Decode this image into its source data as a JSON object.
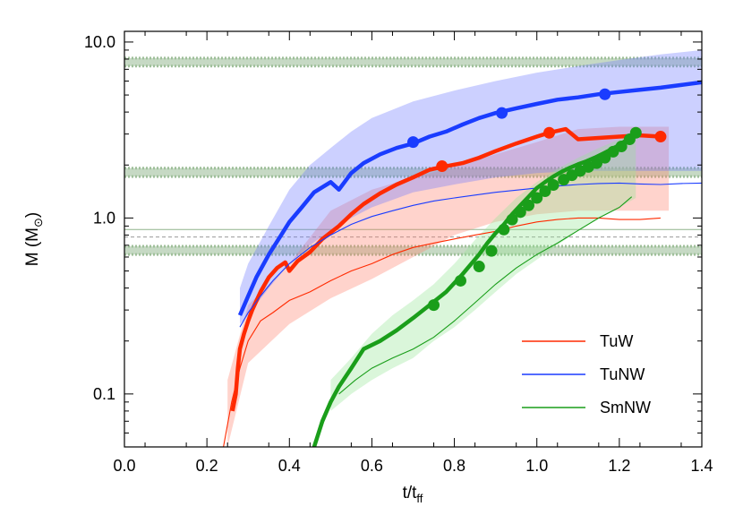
{
  "chart_data": {
    "type": "line",
    "xlabel": "t/t",
    "xlabel_sub": "ff",
    "ylabel": "M (M",
    "ylabel_sub": "⊙",
    "ylabel_close": ")",
    "xlim": [
      0.0,
      1.4
    ],
    "ylim": [
      0.05,
      11.5
    ],
    "yscale": "log",
    "x_ticks": [
      0.0,
      0.2,
      0.4,
      0.6,
      0.8,
      1.0,
      1.2,
      1.4
    ],
    "x_tick_labels": [
      "0.0",
      "0.2",
      "0.4",
      "0.6",
      "0.8",
      "1.0",
      "1.2",
      "1.4"
    ],
    "y_ticks": [
      0.1,
      1.0,
      10.0
    ],
    "y_tick_labels": [
      "0.1",
      "1.0",
      "10.0"
    ],
    "legend_position": "bottom-right",
    "reference_bands": [
      {
        "y_low": 7.3,
        "y_high": 8.1,
        "color": "#b3ccb0"
      },
      {
        "y_low": 1.72,
        "y_high": 1.92,
        "color": "#b3ccb0"
      },
      {
        "y_low": 0.62,
        "y_high": 0.69,
        "color": "#b3ccb0"
      }
    ],
    "reference_lines": [
      {
        "y": 0.86,
        "color": "#8fb48a",
        "dash": false
      },
      {
        "y": 0.78,
        "color": "#999999",
        "dash": true
      }
    ],
    "series": [
      {
        "name": "TuW",
        "color": "#ff2a00",
        "fill": "rgba(255,128,110,0.35)",
        "thick": {
          "x": [
            0.262,
            0.27,
            0.275,
            0.28,
            0.29,
            0.3,
            0.31,
            0.33,
            0.35,
            0.37,
            0.39,
            0.4,
            0.42,
            0.45,
            0.48,
            0.52,
            0.55,
            0.58,
            0.62,
            0.66,
            0.7,
            0.74,
            0.77,
            0.82,
            0.86,
            0.9,
            0.95,
            1.0,
            1.03,
            1.07,
            1.1,
            1.15,
            1.2,
            1.25,
            1.3
          ],
          "y": [
            0.08,
            0.1,
            0.14,
            0.18,
            0.22,
            0.26,
            0.3,
            0.38,
            0.46,
            0.52,
            0.56,
            0.5,
            0.57,
            0.64,
            0.76,
            0.9,
            1.05,
            1.2,
            1.38,
            1.55,
            1.7,
            1.88,
            1.95,
            2.05,
            2.2,
            2.4,
            2.65,
            2.9,
            3.05,
            3.2,
            2.8,
            2.85,
            2.9,
            2.95,
            2.9
          ]
        },
        "markers": {
          "x": [
            0.77,
            1.03,
            1.3
          ],
          "y": [
            1.97,
            3.05,
            2.9
          ]
        },
        "thin": {
          "x": [
            0.24,
            0.26,
            0.28,
            0.3,
            0.33,
            0.36,
            0.4,
            0.45,
            0.5,
            0.55,
            0.6,
            0.65,
            0.7,
            0.75,
            0.8,
            0.85,
            0.9,
            0.95,
            1.0,
            1.05,
            1.1,
            1.15,
            1.2,
            1.25,
            1.3
          ],
          "y": [
            0.05,
            0.09,
            0.14,
            0.2,
            0.26,
            0.29,
            0.34,
            0.38,
            0.44,
            0.5,
            0.55,
            0.62,
            0.68,
            0.72,
            0.76,
            0.8,
            0.84,
            0.9,
            0.95,
            0.98,
            1.0,
            1.0,
            0.98,
            0.98,
            1.0
          ]
        },
        "band": {
          "x": [
            0.25,
            0.3,
            0.4,
            0.5,
            0.6,
            0.7,
            0.8,
            0.9,
            1.0,
            1.1,
            1.2,
            1.32
          ],
          "low": [
            0.05,
            0.15,
            0.25,
            0.35,
            0.45,
            0.6,
            0.8,
            0.95,
            1.05,
            1.1,
            1.1,
            1.1
          ],
          "high": [
            0.12,
            0.32,
            0.55,
            1.1,
            1.45,
            1.7,
            1.95,
            2.3,
            2.7,
            3.2,
            3.3,
            3.3
          ]
        }
      },
      {
        "name": "TuNW",
        "color": "#1a3cff",
        "fill": "rgba(110,120,255,0.35)",
        "thick": {
          "x": [
            0.28,
            0.3,
            0.32,
            0.35,
            0.38,
            0.4,
            0.43,
            0.46,
            0.5,
            0.52,
            0.55,
            0.58,
            0.62,
            0.66,
            0.7,
            0.74,
            0.78,
            0.82,
            0.86,
            0.9,
            0.95,
            1.0,
            1.05,
            1.1,
            1.15,
            1.2,
            1.25,
            1.3,
            1.35,
            1.4
          ],
          "y": [
            0.28,
            0.36,
            0.46,
            0.62,
            0.8,
            0.95,
            1.15,
            1.4,
            1.6,
            1.45,
            1.8,
            2.05,
            2.3,
            2.5,
            2.65,
            2.9,
            3.1,
            3.4,
            3.7,
            3.95,
            4.2,
            4.45,
            4.7,
            4.85,
            5.05,
            5.2,
            5.35,
            5.5,
            5.7,
            5.9
          ]
        },
        "markers": {
          "x": [
            0.7,
            0.915,
            1.165
          ],
          "y": [
            2.7,
            3.95,
            5.05
          ]
        },
        "thin": {
          "x": [
            0.28,
            0.3,
            0.33,
            0.36,
            0.4,
            0.45,
            0.5,
            0.55,
            0.6,
            0.65,
            0.7,
            0.75,
            0.8,
            0.85,
            0.9,
            0.95,
            1.0,
            1.05,
            1.1,
            1.15,
            1.2,
            1.25,
            1.3,
            1.35,
            1.4
          ],
          "y": [
            0.24,
            0.29,
            0.36,
            0.44,
            0.55,
            0.68,
            0.8,
            0.92,
            1.02,
            1.1,
            1.18,
            1.25,
            1.3,
            1.35,
            1.4,
            1.44,
            1.48,
            1.52,
            1.55,
            1.57,
            1.58,
            1.56,
            1.55,
            1.57,
            1.58
          ]
        },
        "band": {
          "x": [
            0.28,
            0.3,
            0.35,
            0.4,
            0.45,
            0.5,
            0.55,
            0.6,
            0.7,
            0.8,
            0.9,
            1.0,
            1.1,
            1.2,
            1.3,
            1.4
          ],
          "low": [
            0.25,
            0.28,
            0.4,
            0.55,
            0.7,
            0.85,
            1.0,
            1.15,
            1.4,
            1.55,
            1.7,
            1.8,
            1.85,
            1.85,
            1.85,
            1.85
          ],
          "high": [
            0.4,
            0.55,
            0.9,
            1.45,
            2.0,
            2.5,
            3.1,
            3.7,
            4.6,
            5.3,
            6.0,
            6.7,
            7.3,
            7.9,
            8.5,
            9.0
          ]
        }
      },
      {
        "name": "SmNW",
        "color": "#1a9e1a",
        "fill": "rgba(150,230,150,0.35)",
        "thick": {
          "x": [
            0.46,
            0.48,
            0.5,
            0.52,
            0.55,
            0.58,
            0.62,
            0.66,
            0.7,
            0.74,
            0.78,
            0.82,
            0.86,
            0.88,
            0.9,
            0.92,
            0.94,
            0.96,
            0.98,
            1.0,
            1.02,
            1.04,
            1.06,
            1.08,
            1.1,
            1.12,
            1.14,
            1.16,
            1.18,
            1.2,
            1.22,
            1.24
          ],
          "y": [
            0.05,
            0.07,
            0.09,
            0.11,
            0.14,
            0.18,
            0.2,
            0.23,
            0.27,
            0.32,
            0.38,
            0.48,
            0.62,
            0.72,
            0.82,
            0.92,
            1.05,
            1.18,
            1.32,
            1.48,
            1.6,
            1.72,
            1.83,
            1.93,
            2.02,
            2.1,
            2.2,
            2.32,
            2.45,
            2.6,
            2.8,
            3.05
          ]
        },
        "markers": {
          "x": [
            0.75,
            0.815,
            0.86,
            0.89,
            0.92,
            0.94,
            0.96,
            0.98,
            1.0,
            1.02,
            1.04,
            1.065,
            1.085,
            1.105,
            1.125,
            1.145,
            1.165,
            1.185,
            1.205,
            1.225,
            1.24
          ],
          "y": [
            0.32,
            0.44,
            0.53,
            0.65,
            0.86,
            0.98,
            1.08,
            1.18,
            1.3,
            1.42,
            1.54,
            1.65,
            1.75,
            1.85,
            1.95,
            2.05,
            2.2,
            2.38,
            2.55,
            2.8,
            3.05
          ]
        },
        "thin": {
          "x": [
            0.52,
            0.56,
            0.6,
            0.65,
            0.7,
            0.75,
            0.8,
            0.85,
            0.9,
            0.95,
            1.0,
            1.05,
            1.1,
            1.15,
            1.2,
            1.23
          ],
          "y": [
            0.1,
            0.12,
            0.14,
            0.16,
            0.18,
            0.21,
            0.26,
            0.33,
            0.42,
            0.52,
            0.62,
            0.72,
            0.85,
            1.0,
            1.15,
            1.32
          ]
        },
        "band": {
          "x": [
            0.5,
            0.55,
            0.6,
            0.65,
            0.7,
            0.75,
            0.8,
            0.85,
            0.9,
            0.95,
            1.0,
            1.05,
            1.1,
            1.15,
            1.2,
            1.24
          ],
          "low": [
            0.08,
            0.1,
            0.12,
            0.14,
            0.16,
            0.2,
            0.24,
            0.3,
            0.38,
            0.48,
            0.58,
            0.7,
            0.85,
            1.0,
            1.15,
            1.3
          ],
          "high": [
            0.12,
            0.16,
            0.22,
            0.28,
            0.34,
            0.42,
            0.55,
            0.75,
            1.0,
            1.3,
            1.6,
            1.9,
            2.2,
            2.5,
            2.8,
            3.1
          ]
        }
      }
    ]
  }
}
